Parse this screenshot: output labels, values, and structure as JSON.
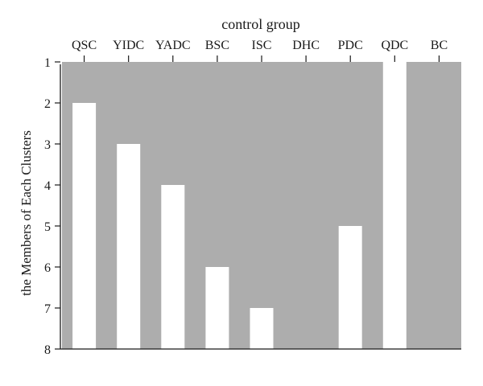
{
  "chart_data": {
    "type": "bar",
    "title": "control group",
    "xlabel": "control group",
    "ylabel": "the Members of Each Clusters",
    "categories": [
      "QSC",
      "YIDC",
      "YADC",
      "BSC",
      "ISC",
      "DHC",
      "PDC",
      "QDC",
      "BC"
    ],
    "values": [
      2,
      3,
      4,
      6,
      7,
      null,
      5,
      1,
      null
    ],
    "y_ticks": [
      "1",
      "2",
      "3",
      "4",
      "5",
      "6",
      "7",
      "8"
    ],
    "ylim": [
      1,
      8
    ],
    "y_inverted": true,
    "x_axis_position": "top",
    "grid": false,
    "legend": "none",
    "colors": {
      "background": "#adadad",
      "bar": "#ffffff",
      "axis": "#1a1a1a"
    }
  }
}
